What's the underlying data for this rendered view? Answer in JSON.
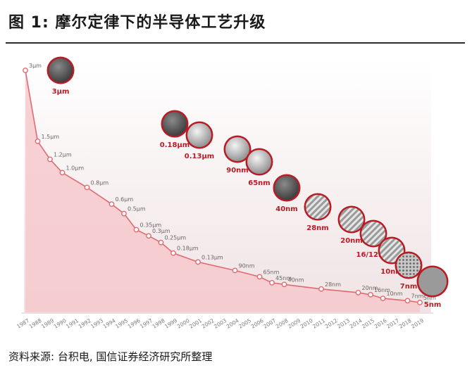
{
  "figure": {
    "title": "图 1: 摩尔定律下的半导体工艺升级",
    "source": "资料来源: 台积电, 国信证券经济研究所整理"
  },
  "chart_data": {
    "type": "area",
    "title": "图 1: 摩尔定律下的半导体工艺升级",
    "xlabel": "",
    "ylabel": "",
    "x": [
      "1987",
      "1988",
      "1989",
      "1990",
      "1991",
      "1992",
      "1993",
      "1994",
      "1995",
      "1996",
      "1997",
      "1998",
      "1999",
      "2000",
      "2001",
      "2002",
      "2003",
      "2004",
      "2005",
      "2006",
      "2007",
      "2008",
      "2009",
      "2010",
      "2011",
      "2012",
      "2013",
      "2014",
      "2015",
      "2016",
      "2017",
      "2018",
      "2019"
    ],
    "points": [
      {
        "year": "1987",
        "node_um": 3.0,
        "label": "3μm"
      },
      {
        "year": "1988",
        "node_um": 1.5,
        "label": "1.5μm"
      },
      {
        "year": "1989",
        "node_um": 1.2,
        "label": "1.2μm"
      },
      {
        "year": "1990",
        "node_um": 1.0,
        "label": "1.0μm"
      },
      {
        "year": "1992",
        "node_um": 0.8,
        "label": "0.8μm"
      },
      {
        "year": "1994",
        "node_um": 0.6,
        "label": "0.6μm"
      },
      {
        "year": "1995",
        "node_um": 0.5,
        "label": "0.5μm"
      },
      {
        "year": "1996",
        "node_um": 0.35,
        "label": "0.35μm"
      },
      {
        "year": "1997",
        "node_um": 0.3,
        "label": "0.3μm"
      },
      {
        "year": "1998",
        "node_um": 0.25,
        "label": "0.25μm"
      },
      {
        "year": "1999",
        "node_um": 0.18,
        "label": "0.18μm"
      },
      {
        "year": "2001",
        "node_um": 0.13,
        "label": "0.13μm"
      },
      {
        "year": "2004",
        "node_um": 0.09,
        "label": "90nm"
      },
      {
        "year": "2006",
        "node_um": 0.065,
        "label": "65nm"
      },
      {
        "year": "2007",
        "node_um": 0.045,
        "label": "45nm"
      },
      {
        "year": "2008",
        "node_um": 0.04,
        "label": "40nm"
      },
      {
        "year": "2011",
        "node_um": 0.028,
        "label": "28nm"
      },
      {
        "year": "2014",
        "node_um": 0.02,
        "label": "20nm"
      },
      {
        "year": "2015",
        "node_um": 0.016,
        "label": "16nm"
      },
      {
        "year": "2016",
        "node_um": 0.01,
        "label": "10nm"
      },
      {
        "year": "2018",
        "node_um": 0.007,
        "label": "7nm"
      },
      {
        "year": "2019",
        "node_um": 0.005,
        "label": "5nm"
      }
    ],
    "ylim": [
      0,
      3.0
    ],
    "grid": false,
    "legend": "none",
    "annotations": [
      {
        "label": "3μm",
        "style": "dark"
      },
      {
        "label": "0.18μm",
        "style": "dark"
      },
      {
        "label": "0.13μm",
        "style": "light"
      },
      {
        "label": "90nm",
        "style": "light"
      },
      {
        "label": "65nm",
        "style": "light"
      },
      {
        "label": "40nm",
        "style": "dark"
      },
      {
        "label": "28nm",
        "style": "hatch"
      },
      {
        "label": "20nm",
        "style": "hatch"
      },
      {
        "label": "16/12nm",
        "style": "hatch"
      },
      {
        "label": "10nm",
        "style": "hatch"
      },
      {
        "label": "7nm",
        "style": "mesh"
      },
      {
        "label": "5nm",
        "style": "flat"
      }
    ],
    "colors": {
      "line": "#e06a72",
      "fill": "#f6c9cd",
      "panel": "#f1e4e5",
      "ring": "#b71c24",
      "tick": "#7a7a7a"
    }
  }
}
